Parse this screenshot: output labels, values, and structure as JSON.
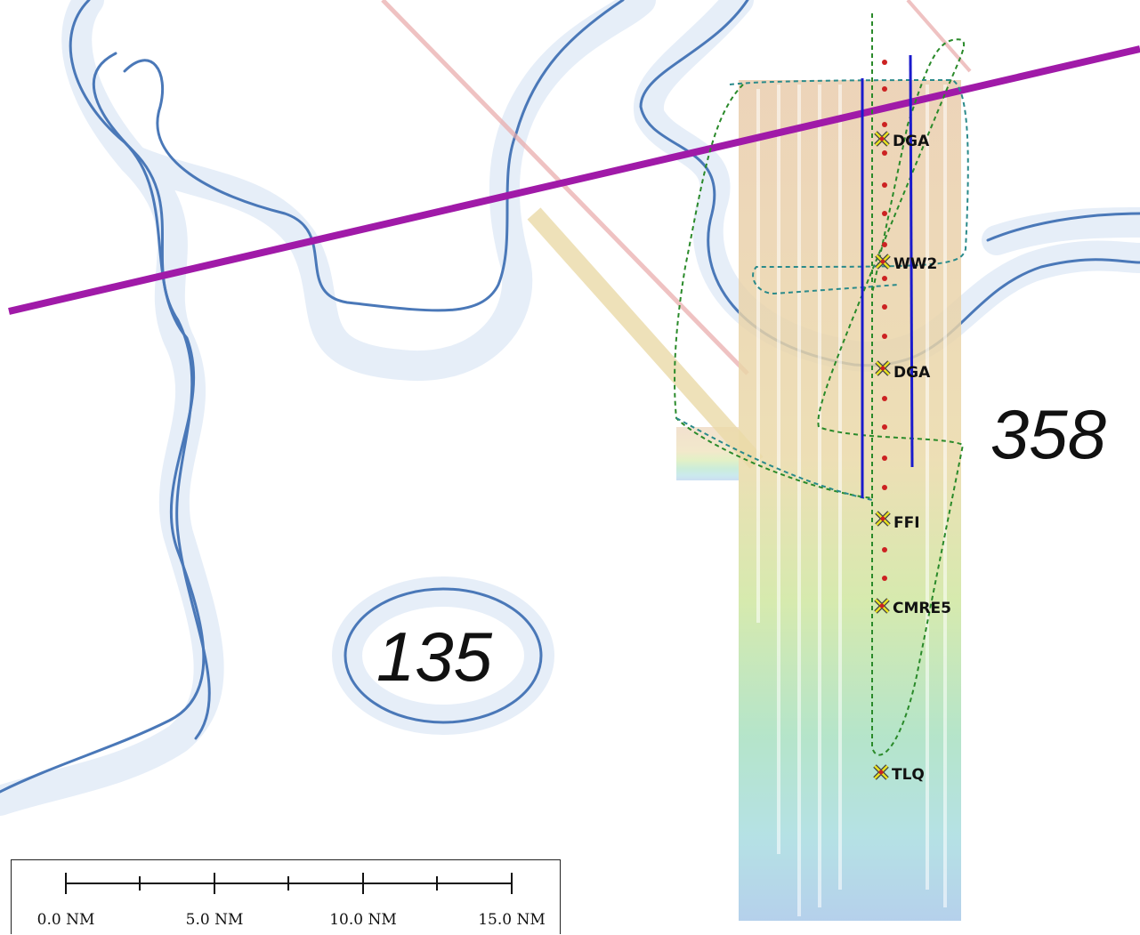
{
  "depth_labels": [
    {
      "id": "depth-135",
      "text": "135"
    },
    {
      "id": "depth-358",
      "text": "358"
    }
  ],
  "waypoints": [
    {
      "id": "wp-dga-1",
      "label": "DGA"
    },
    {
      "id": "wp-ww2",
      "label": "WW2"
    },
    {
      "id": "wp-dga-2",
      "label": "DGA"
    },
    {
      "id": "wp-ffi",
      "label": "FFI"
    },
    {
      "id": "wp-cmre5",
      "label": "CMRE5"
    },
    {
      "id": "wp-tlq",
      "label": "TLQ"
    }
  ],
  "scale_bar": {
    "labels": [
      "0.0 NM",
      "5.0 NM",
      "10.0 NM",
      "15.0 NM"
    ]
  },
  "colors": {
    "contour": "#4a78b8",
    "contour_halo": "#e6eef8",
    "route": "#a01aa8",
    "track": "#1a1acc",
    "planned_path_green": "#2a8a2a",
    "planned_path_teal": "#2a8a8a",
    "waypoint_dot": "#cc2222",
    "waypoint_marker": "#e8e020"
  }
}
